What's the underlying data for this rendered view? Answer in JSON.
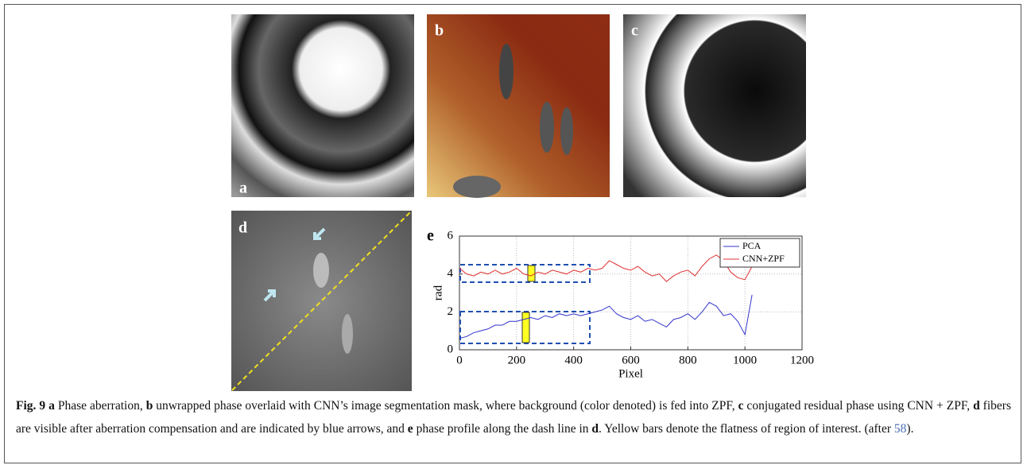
{
  "panel_labels": {
    "a": "a",
    "b": "b",
    "c": "c",
    "d": "d"
  },
  "chart_data": {
    "type": "line",
    "panel_label": "e",
    "xlabel": "Pixel",
    "ylabel": "rad",
    "x": [
      0,
      25,
      50,
      75,
      100,
      125,
      150,
      175,
      200,
      225,
      250,
      275,
      300,
      325,
      350,
      375,
      400,
      425,
      450,
      475,
      500,
      525,
      550,
      575,
      600,
      625,
      650,
      675,
      700,
      725,
      750,
      775,
      800,
      825,
      850,
      875,
      900,
      925,
      950,
      975,
      1000,
      1025
    ],
    "series": [
      {
        "name": "PCA",
        "color": "#3333cc",
        "values": [
          0.6,
          0.7,
          0.9,
          1.0,
          1.1,
          1.3,
          1.3,
          1.5,
          1.5,
          1.6,
          1.7,
          1.6,
          1.8,
          1.7,
          1.9,
          1.8,
          1.9,
          1.8,
          1.9,
          2.0,
          2.1,
          2.3,
          1.9,
          1.7,
          1.6,
          1.8,
          1.5,
          1.6,
          1.4,
          1.2,
          1.6,
          1.7,
          1.9,
          1.6,
          2.0,
          2.5,
          2.3,
          1.8,
          1.9,
          1.5,
          0.8,
          2.9
        ]
      },
      {
        "name": "CNN+ZPF",
        "color": "#e03030",
        "values": [
          4.3,
          4.0,
          3.9,
          4.1,
          4.0,
          4.2,
          4.0,
          4.1,
          4.3,
          4.0,
          3.9,
          4.1,
          4.0,
          4.2,
          4.1,
          4.0,
          4.2,
          4.1,
          4.3,
          4.2,
          4.3,
          4.7,
          4.5,
          4.3,
          4.2,
          4.4,
          4.1,
          3.9,
          4.0,
          3.6,
          3.9,
          4.1,
          4.2,
          3.9,
          4.4,
          4.8,
          5.0,
          4.7,
          4.1,
          3.8,
          3.7,
          4.4
        ]
      }
    ],
    "xlim": [
      0,
      1200
    ],
    "xticks": [
      0,
      200,
      400,
      600,
      800,
      1000,
      1200
    ],
    "ylim": [
      0,
      6
    ],
    "yticks": [
      0,
      2,
      4,
      6
    ],
    "grid": true,
    "legend": "upper right"
  },
  "caption": {
    "runs": [
      {
        "text": "Fig. 9 a",
        "style": "bold"
      },
      {
        "text": " Phase aberration, ",
        "style": "plain"
      },
      {
        "text": "b",
        "style": "bold"
      },
      {
        "text": " unwrapped phase overlaid with CNN’s image segmentation mask, where background (color denoted) is fed into ZPF, ",
        "style": "plain"
      },
      {
        "text": "c",
        "style": "bold"
      },
      {
        "text": " conjugated residual phase using CNN + ZPF, ",
        "style": "plain"
      },
      {
        "text": "d",
        "style": "bold"
      },
      {
        "text": " fibers are visible after aberration compensation and are indicated by blue arrows, and ",
        "style": "plain"
      },
      {
        "text": "e",
        "style": "bold"
      },
      {
        "text": " phase profile along the dash line in ",
        "style": "plain"
      },
      {
        "text": "d",
        "style": "bold"
      },
      {
        "text": ". Yellow bars denote the flatness of region of interest. (after ",
        "style": "plain"
      },
      {
        "text": "58",
        "style": "link"
      },
      {
        "text": ").",
        "style": "plain"
      }
    ]
  }
}
